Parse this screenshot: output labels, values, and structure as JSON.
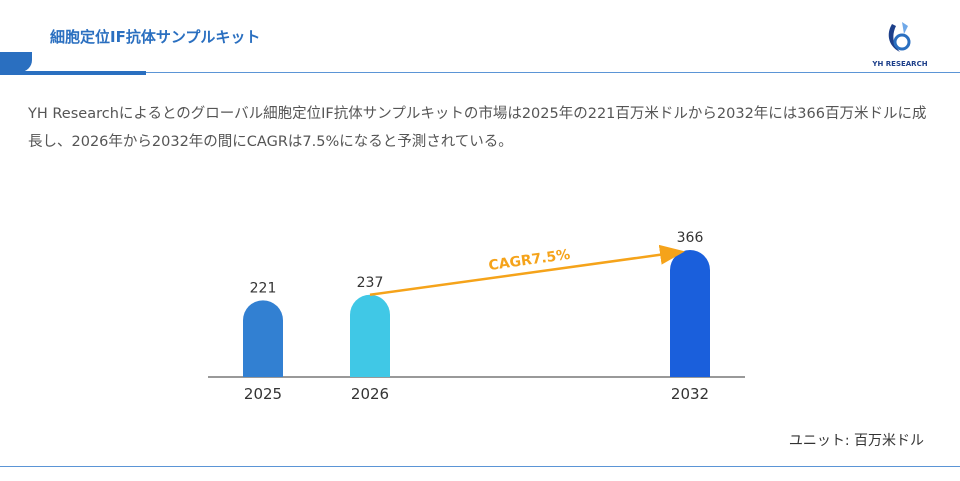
{
  "header": {
    "title": "細胞定位IF抗体サンプルキット",
    "logo_text": "YH RESEARCH"
  },
  "description": "YH Researchによるとのグローバル細胞定位IF抗体サンプルキットの市場は2025年の221百万米ドルから2032年には366百万米ドルに成長し、2026年から2032年の間にCAGRは7.5%になると予測されている。",
  "chart_data": {
    "type": "bar",
    "categories": [
      "2025",
      "2026",
      "2032"
    ],
    "values": [
      221,
      237,
      366
    ],
    "labels": [
      "221",
      "237",
      "366"
    ],
    "annotation": "CAGR7.5%",
    "unit": "ユニット: 百万米ドル",
    "colors": [
      "#3280d2",
      "#40c8e6",
      "#1a5fdc"
    ],
    "annotation_color": "#f5a31a"
  }
}
